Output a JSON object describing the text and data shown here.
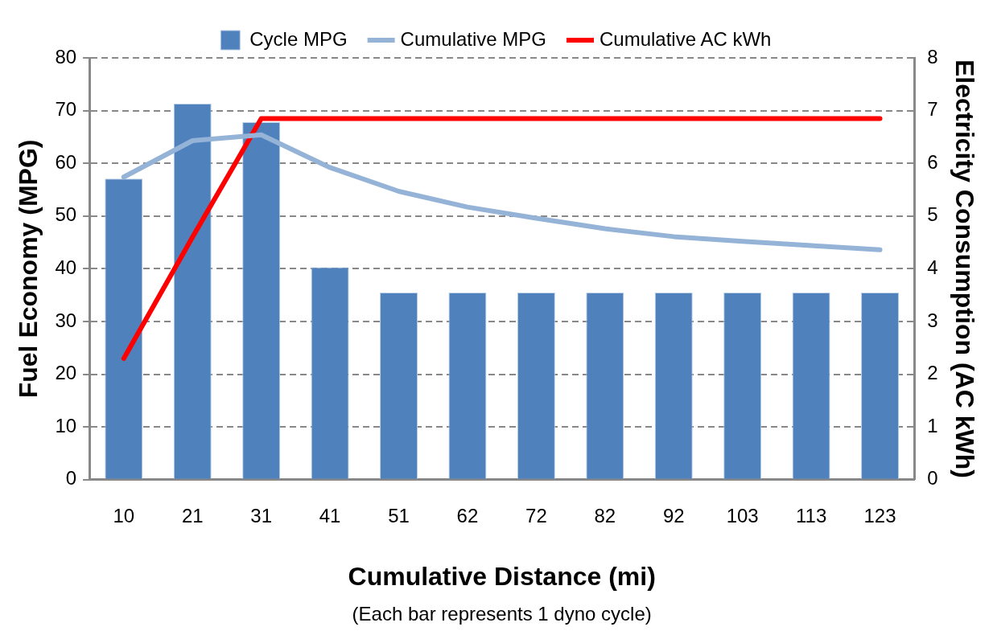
{
  "chart_data": {
    "type": "bar",
    "xlabel": "Cumulative Distance (mi)",
    "ylabel": "Fuel Economy (MPG)",
    "y2label": "Electricity Consumption (AC kWh)",
    "annotations": [
      "(Each bar represents 1 dyno cycle)"
    ],
    "categories": [
      "10",
      "21",
      "31",
      "41",
      "51",
      "62",
      "72",
      "82",
      "92",
      "103",
      "113",
      "123"
    ],
    "series": [
      {
        "name": "Cycle MPG",
        "color": "#4f81bd",
        "values": [
          57.1,
          71.3,
          67.8,
          40.3,
          35.5,
          35.5,
          35.5,
          35.5,
          35.5,
          35.5,
          35.5,
          35.5
        ]
      },
      {
        "name": "Cumulative MPG",
        "type": "line",
        "color": "#95b3d7",
        "values": [
          57.4,
          64.3,
          65.4,
          59.2,
          54.7,
          51.7,
          49.6,
          47.6,
          46.1,
          45.2,
          44.4,
          43.6
        ]
      },
      {
        "name": "Cumulative AC kWh",
        "type": "line",
        "axis": "y2",
        "color": "#ff0000",
        "values": [
          2.3,
          4.6,
          6.85,
          6.85,
          6.85,
          6.85,
          6.85,
          6.85,
          6.85,
          6.85,
          6.85,
          6.85
        ]
      }
    ],
    "ylim": [
      0,
      80
    ],
    "yticks": [
      0,
      10,
      20,
      30,
      40,
      50,
      60,
      70,
      80
    ],
    "y2lim": [
      0,
      8
    ],
    "y2ticks": [
      0,
      1,
      2,
      3,
      4,
      5,
      6,
      7,
      8
    ],
    "grid": "y",
    "legend": "top",
    "line_style": "solid",
    "marker": "none"
  }
}
